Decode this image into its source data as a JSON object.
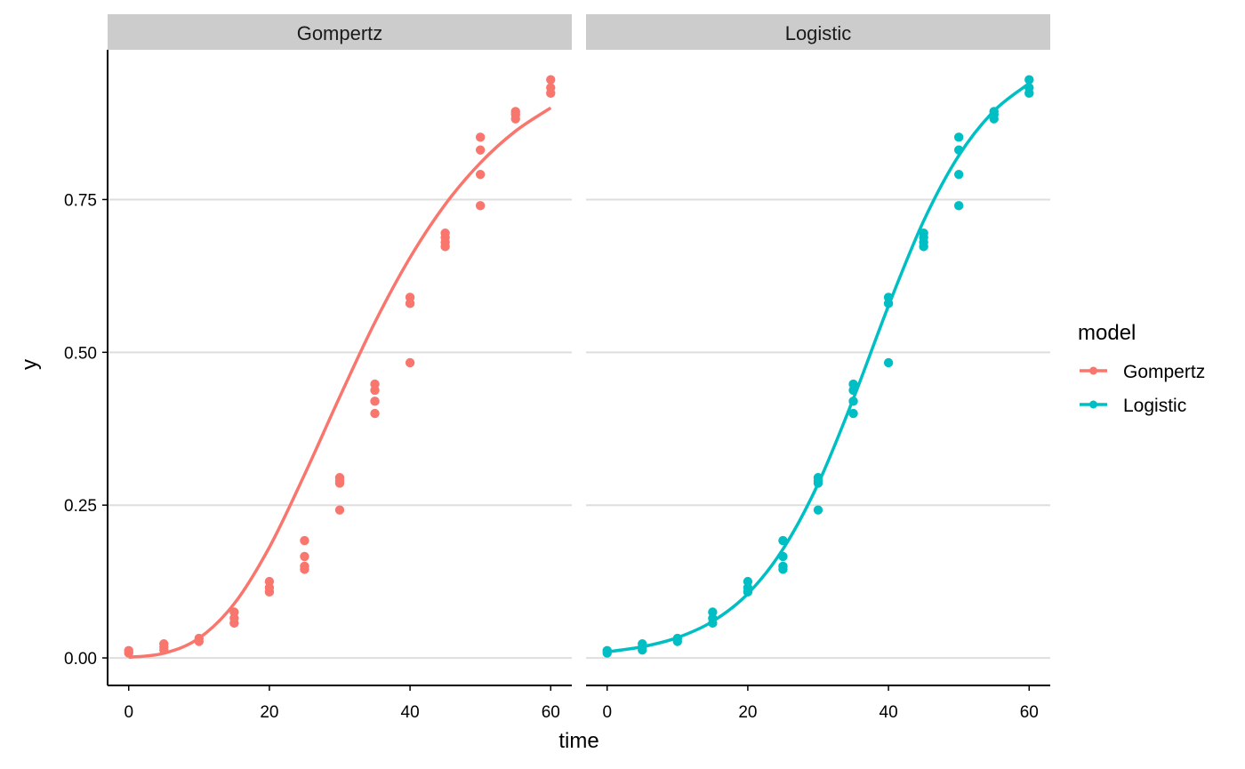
{
  "chart_data": {
    "type": "scatter",
    "xlabel": "time",
    "ylabel": "y",
    "xlim": [
      -3,
      63
    ],
    "ylim": [
      -0.045,
      0.995
    ],
    "x_ticks": [
      0,
      20,
      40,
      60
    ],
    "x_tick_labels": [
      "0",
      "20",
      "40",
      "60"
    ],
    "y_ticks": [
      0,
      0.25,
      0.5,
      0.75
    ],
    "y_tick_labels": [
      "0.00",
      "0.25",
      "0.50",
      "0.75"
    ],
    "grid": "horizontal major",
    "legend": {
      "title": "model",
      "placement": "right",
      "entries": [
        "Gompertz",
        "Logistic"
      ]
    },
    "facets": [
      {
        "label": "Gompertz",
        "color": "#F8766D"
      },
      {
        "label": "Logistic",
        "color": "#00BFC4"
      }
    ],
    "points": {
      "time": [
        0,
        0,
        5,
        5,
        5,
        10,
        10,
        15,
        15,
        15,
        20,
        20,
        20,
        25,
        25,
        25,
        25,
        30,
        30,
        30,
        30,
        35,
        35,
        35,
        35,
        40,
        40,
        40,
        45,
        45,
        45,
        45,
        50,
        50,
        50,
        50,
        55,
        55,
        55,
        60,
        60,
        60
      ],
      "y": [
        0.008,
        0.012,
        0.013,
        0.018,
        0.023,
        0.027,
        0.032,
        0.057,
        0.065,
        0.075,
        0.108,
        0.115,
        0.125,
        0.145,
        0.15,
        0.166,
        0.192,
        0.242,
        0.286,
        0.29,
        0.295,
        0.4,
        0.42,
        0.438,
        0.448,
        0.483,
        0.58,
        0.59,
        0.673,
        0.68,
        0.688,
        0.695,
        0.74,
        0.791,
        0.831,
        0.852,
        0.882,
        0.889,
        0.894,
        0.924,
        0.933,
        0.946
      ]
    },
    "fitted_curves": {
      "time": [
        0,
        5,
        10,
        15,
        20,
        25,
        30,
        35,
        40,
        45,
        50,
        55,
        60
      ],
      "Gompertz": [
        0.001,
        0.0077,
        0.0323,
        0.0887,
        0.181,
        0.3,
        0.427,
        0.549,
        0.655,
        0.742,
        0.81,
        0.862,
        0.9
      ],
      "Logistic": [
        0.01,
        0.0183,
        0.0333,
        0.0598,
        0.105,
        0.178,
        0.285,
        0.424,
        0.576,
        0.715,
        0.822,
        0.895,
        0.94
      ]
    }
  }
}
